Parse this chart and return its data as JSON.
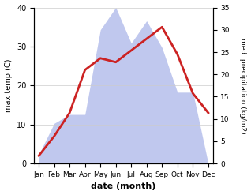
{
  "months": [
    "Jan",
    "Feb",
    "Mar",
    "Apr",
    "May",
    "Jun",
    "Jul",
    "Aug",
    "Sep",
    "Oct",
    "Nov",
    "Dec"
  ],
  "temperature": [
    2,
    7,
    13,
    24,
    27,
    26,
    29,
    32,
    35,
    28,
    18,
    13
  ],
  "precipitation": [
    2,
    9,
    11,
    11,
    30,
    35,
    27,
    32,
    26,
    16,
    16,
    0
  ],
  "temp_color": "#cc2222",
  "precip_color_fill": "#c0c8ee",
  "temp_ylim": [
    0,
    40
  ],
  "precip_ylim": [
    0,
    35
  ],
  "temp_yticks": [
    0,
    10,
    20,
    30,
    40
  ],
  "precip_yticks": [
    0,
    5,
    10,
    15,
    20,
    25,
    30,
    35
  ],
  "ylabel_left": "max temp (C)",
  "ylabel_right": "med. precipitation (kg/m2)",
  "xlabel": "date (month)",
  "bg_color": "#ffffff",
  "plot_bg_color": "#ffffff"
}
